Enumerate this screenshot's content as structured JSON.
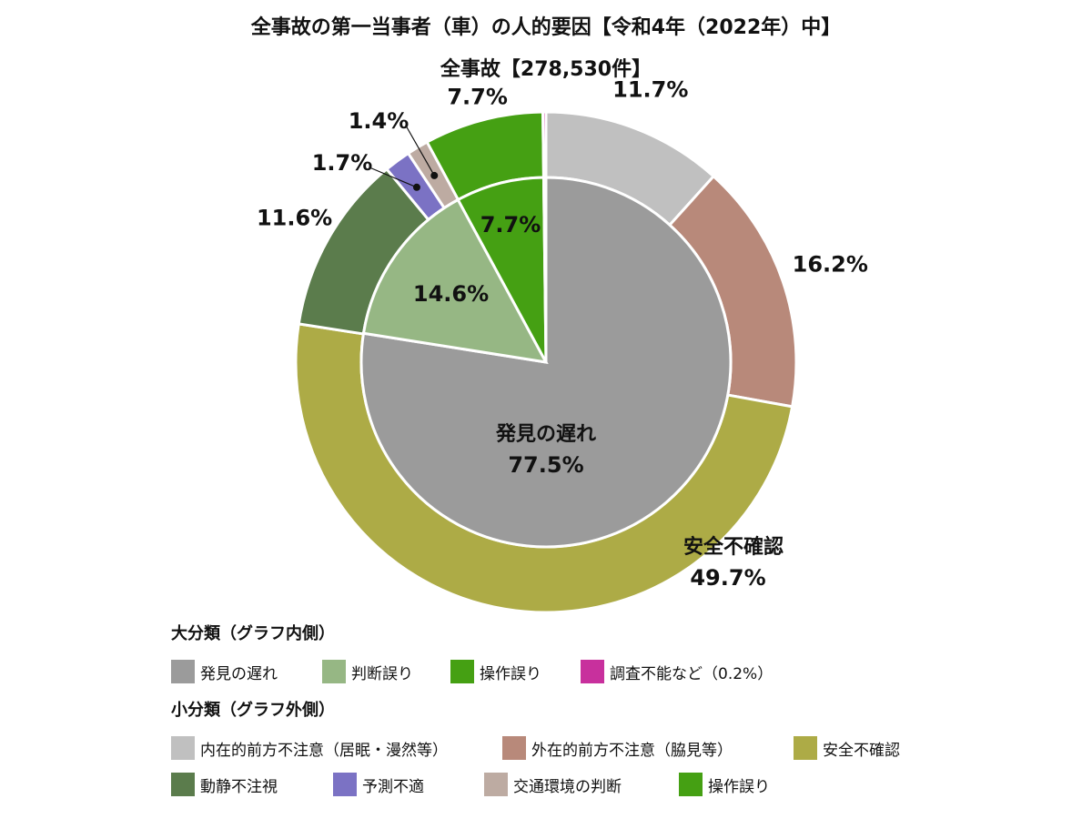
{
  "title": "全事故の第一当事者（車）の人的要因【令和4年（2022年）中】",
  "subtitle": "全事故【278,530件】",
  "chart_data": {
    "type": "pie",
    "variant": "two-level donut",
    "inner": {
      "legend_title": "大分類（グラフ内側）",
      "slices": [
        {
          "name": "発見の遅れ",
          "value": 77.5,
          "label": "77.5%",
          "color": "#9b9b9b"
        },
        {
          "name": "判断誤り",
          "value": 14.6,
          "label": "14.6%",
          "color": "#96b784"
        },
        {
          "name": "操作誤り",
          "value": 7.7,
          "label": "7.7%",
          "color": "#45a013"
        },
        {
          "name": "調査不能など（0.2%）",
          "value": 0.2,
          "label": "",
          "color": "#c8309d"
        }
      ]
    },
    "outer": {
      "legend_title": "小分類（グラフ外側）",
      "slices": [
        {
          "name": "内在的前方不注意（居眠・漫然等）",
          "value": 11.7,
          "label": "11.7%",
          "color": "#c0c0c0"
        },
        {
          "name": "外在的前方不注意（脇見等）",
          "value": 16.2,
          "label": "16.2%",
          "color": "#b8897a"
        },
        {
          "name": "安全不確認",
          "value": 49.7,
          "label": "49.7%",
          "color": "#adab46"
        },
        {
          "name": "動静不注視",
          "value": 11.6,
          "label": "11.6%",
          "color": "#5b7c4c"
        },
        {
          "name": "予測不適",
          "value": 1.7,
          "label": "1.7%",
          "color": "#7b72c4"
        },
        {
          "name": "交通環境の判断",
          "value": 1.4,
          "label": "1.4%",
          "color": "#bdaba2"
        },
        {
          "name": "操作誤り",
          "value": 7.7,
          "label": "7.7%",
          "color": "#45a013"
        },
        {
          "name": "調査不能など",
          "value": 0.2,
          "label": "",
          "color": "#c8309d"
        }
      ]
    },
    "annotations": {
      "inner_main_name": "発見の遅れ",
      "inner_main_value": "77.5%",
      "outer_main_name": "安全不確認",
      "outer_main_value": "49.7%"
    }
  }
}
